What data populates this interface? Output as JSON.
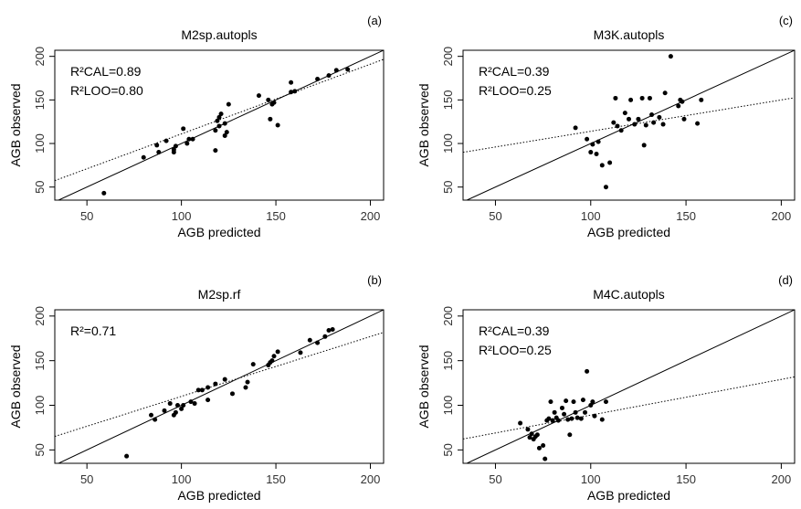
{
  "chart_data": [
    {
      "id": "a",
      "type": "scatter",
      "panel_label": "(a)",
      "title": "M2sp.autopls",
      "xlabel": "AGB predicted",
      "ylabel": "AGB observed",
      "xlim": [
        33,
        207
      ],
      "ylim": [
        35,
        207
      ],
      "xticks": [
        50,
        100,
        150,
        200
      ],
      "yticks": [
        50,
        100,
        150,
        200
      ],
      "annotations": [
        "R²CAL=0.89",
        "R²LOO=0.80"
      ],
      "reference_line": "1:1 solid",
      "fit_line": {
        "style": "dotted",
        "intercept": 31,
        "slope": 0.8
      },
      "points": [
        [
          59,
          43
        ],
        [
          80,
          84
        ],
        [
          87,
          98
        ],
        [
          88,
          90
        ],
        [
          92,
          103
        ],
        [
          96,
          90
        ],
        [
          96,
          93
        ],
        [
          97,
          97
        ],
        [
          101,
          117
        ],
        [
          103,
          100
        ],
        [
          104,
          105
        ],
        [
          106,
          105
        ],
        [
          118,
          92
        ],
        [
          118,
          115
        ],
        [
          119,
          126
        ],
        [
          120,
          130
        ],
        [
          121,
          134
        ],
        [
          123,
          109
        ],
        [
          124,
          113
        ],
        [
          125,
          145
        ],
        [
          120,
          120
        ],
        [
          123,
          123
        ],
        [
          141,
          155
        ],
        [
          147,
          128
        ],
        [
          146,
          150
        ],
        [
          148,
          145
        ],
        [
          149,
          147
        ],
        [
          151,
          121
        ],
        [
          158,
          159
        ],
        [
          158,
          170
        ],
        [
          160,
          160
        ],
        [
          172,
          174
        ],
        [
          178,
          178
        ],
        [
          182,
          184
        ],
        [
          188,
          185
        ]
      ]
    },
    {
      "id": "c",
      "type": "scatter",
      "panel_label": "(c)",
      "title": "M3K.autopls",
      "xlabel": "AGB predicted",
      "ylabel": "AGB observed",
      "xlim": [
        33,
        207
      ],
      "ylim": [
        35,
        207
      ],
      "xticks": [
        50,
        100,
        150,
        200
      ],
      "yticks": [
        50,
        100,
        150,
        200
      ],
      "annotations": [
        "R²CAL=0.39",
        "R²LOO=0.25"
      ],
      "reference_line": "1:1 solid",
      "fit_line": {
        "style": "dotted",
        "intercept": 78,
        "slope": 0.36
      },
      "points": [
        [
          92,
          118
        ],
        [
          98,
          105
        ],
        [
          100,
          90
        ],
        [
          101,
          99
        ],
        [
          103,
          88
        ],
        [
          104,
          102
        ],
        [
          106,
          75
        ],
        [
          108,
          50
        ],
        [
          110,
          78
        ],
        [
          112,
          124
        ],
        [
          113,
          152
        ],
        [
          114,
          120
        ],
        [
          116,
          115
        ],
        [
          118,
          135
        ],
        [
          120,
          128
        ],
        [
          121,
          150
        ],
        [
          123,
          122
        ],
        [
          125,
          128
        ],
        [
          127,
          152
        ],
        [
          128,
          98
        ],
        [
          129,
          121
        ],
        [
          131,
          152
        ],
        [
          132,
          133
        ],
        [
          133,
          124
        ],
        [
          136,
          130
        ],
        [
          138,
          122
        ],
        [
          139,
          158
        ],
        [
          142,
          200
        ],
        [
          146,
          143
        ],
        [
          147,
          150
        ],
        [
          148,
          148
        ],
        [
          149,
          128
        ],
        [
          156,
          123
        ],
        [
          158,
          150
        ]
      ]
    },
    {
      "id": "b",
      "type": "scatter",
      "panel_label": "(b)",
      "title": "M2sp.rf",
      "xlabel": "AGB predicted",
      "ylabel": "AGB observed",
      "xlim": [
        33,
        207
      ],
      "ylim": [
        35,
        207
      ],
      "xticks": [
        50,
        100,
        150,
        200
      ],
      "yticks": [
        50,
        100,
        150,
        200
      ],
      "annotations": [
        "R²=0.71"
      ],
      "reference_line": "1:1 solid",
      "fit_line": {
        "style": "dotted",
        "intercept": 43,
        "slope": 0.67
      },
      "points": [
        [
          71,
          43
        ],
        [
          84,
          89
        ],
        [
          86,
          84
        ],
        [
          91,
          94
        ],
        [
          94,
          102
        ],
        [
          96,
          89
        ],
        [
          97,
          92
        ],
        [
          98,
          100
        ],
        [
          100,
          96
        ],
        [
          101,
          100
        ],
        [
          105,
          104
        ],
        [
          107,
          102
        ],
        [
          109,
          117
        ],
        [
          111,
          117
        ],
        [
          114,
          106
        ],
        [
          114,
          120
        ],
        [
          118,
          124
        ],
        [
          123,
          129
        ],
        [
          127,
          113
        ],
        [
          134,
          120
        ],
        [
          135,
          126
        ],
        [
          138,
          146
        ],
        [
          146,
          145
        ],
        [
          147,
          148
        ],
        [
          148,
          150
        ],
        [
          149,
          155
        ],
        [
          151,
          160
        ],
        [
          163,
          159
        ],
        [
          168,
          173
        ],
        [
          172,
          170
        ],
        [
          176,
          177
        ],
        [
          178,
          184
        ],
        [
          180,
          185
        ]
      ]
    },
    {
      "id": "d",
      "type": "scatter",
      "panel_label": "(d)",
      "title": "M4C.autopls",
      "xlabel": "AGB predicted",
      "ylabel": "AGB observed",
      "xlim": [
        33,
        207
      ],
      "ylim": [
        35,
        207
      ],
      "xticks": [
        50,
        100,
        150,
        200
      ],
      "yticks": [
        50,
        100,
        150,
        200
      ],
      "annotations": [
        "R²CAL=0.39",
        "R²LOO=0.25"
      ],
      "reference_line": "1:1 solid",
      "fit_line": {
        "style": "dotted",
        "intercept": 49,
        "slope": 0.4
      },
      "points": [
        [
          63,
          80
        ],
        [
          67,
          73
        ],
        [
          68,
          64
        ],
        [
          69,
          68
        ],
        [
          70,
          62
        ],
        [
          71,
          65
        ],
        [
          72,
          67
        ],
        [
          73,
          52
        ],
        [
          75,
          55
        ],
        [
          76,
          40
        ],
        [
          77,
          83
        ],
        [
          78,
          85
        ],
        [
          79,
          104
        ],
        [
          80,
          83
        ],
        [
          81,
          92
        ],
        [
          82,
          86
        ],
        [
          83,
          83
        ],
        [
          85,
          97
        ],
        [
          86,
          90
        ],
        [
          87,
          105
        ],
        [
          88,
          84
        ],
        [
          89,
          67
        ],
        [
          90,
          85
        ],
        [
          91,
          104
        ],
        [
          92,
          92
        ],
        [
          93,
          86
        ],
        [
          95,
          85
        ],
        [
          96,
          106
        ],
        [
          97,
          92
        ],
        [
          98,
          138
        ],
        [
          100,
          100
        ],
        [
          101,
          104
        ],
        [
          102,
          88
        ],
        [
          106,
          84
        ],
        [
          108,
          104
        ]
      ]
    }
  ]
}
